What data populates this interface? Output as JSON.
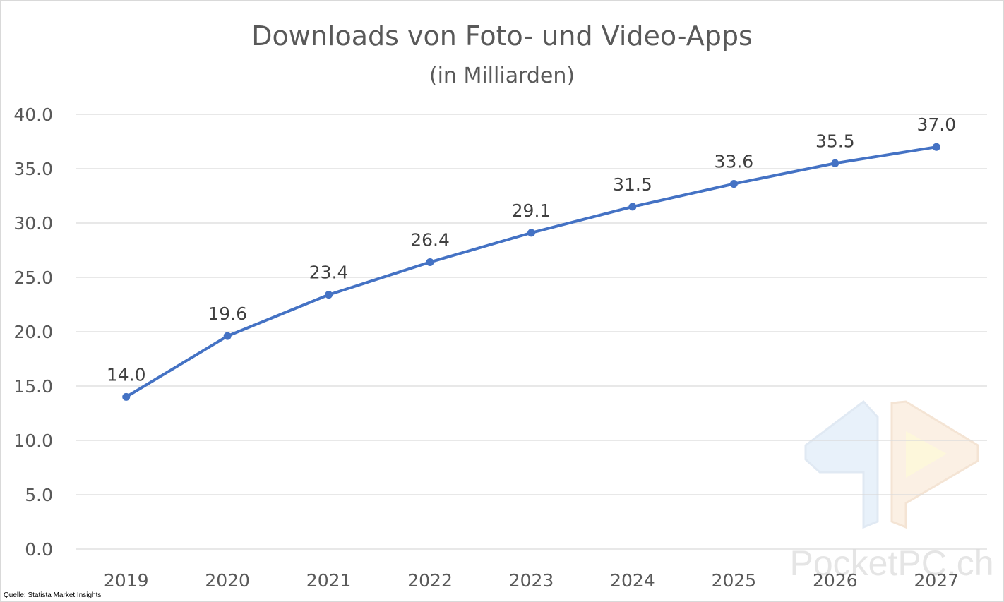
{
  "chart_data": {
    "type": "line",
    "title": "Downloads von Foto- und Video-Apps",
    "subtitle": "(in Milliarden)",
    "categories": [
      "2019",
      "2020",
      "2021",
      "2022",
      "2023",
      "2024",
      "2025",
      "2026",
      "2027"
    ],
    "series": [
      {
        "values": [
          14.0,
          19.6,
          23.4,
          26.4,
          29.1,
          31.5,
          33.6,
          35.5,
          37.0
        ],
        "labels": [
          "14.0",
          "19.6",
          "23.4",
          "26.4",
          "29.1",
          "31.5",
          "33.6",
          "35.5",
          "37.0"
        ],
        "color": "#4472c4"
      }
    ],
    "yticks": [
      "0.0",
      "5.0",
      "10.0",
      "15.0",
      "20.0",
      "25.0",
      "30.0",
      "35.0",
      "40.0"
    ],
    "ylim": [
      0,
      40
    ],
    "ytick_step": 5,
    "grid": true,
    "legend": "none"
  },
  "source": "Quelle: Statista Market Insights",
  "watermark": "PocketPC.ch",
  "colors": {
    "series": "#4472c4",
    "text": "#595959",
    "grid": "#d9d9d9"
  }
}
